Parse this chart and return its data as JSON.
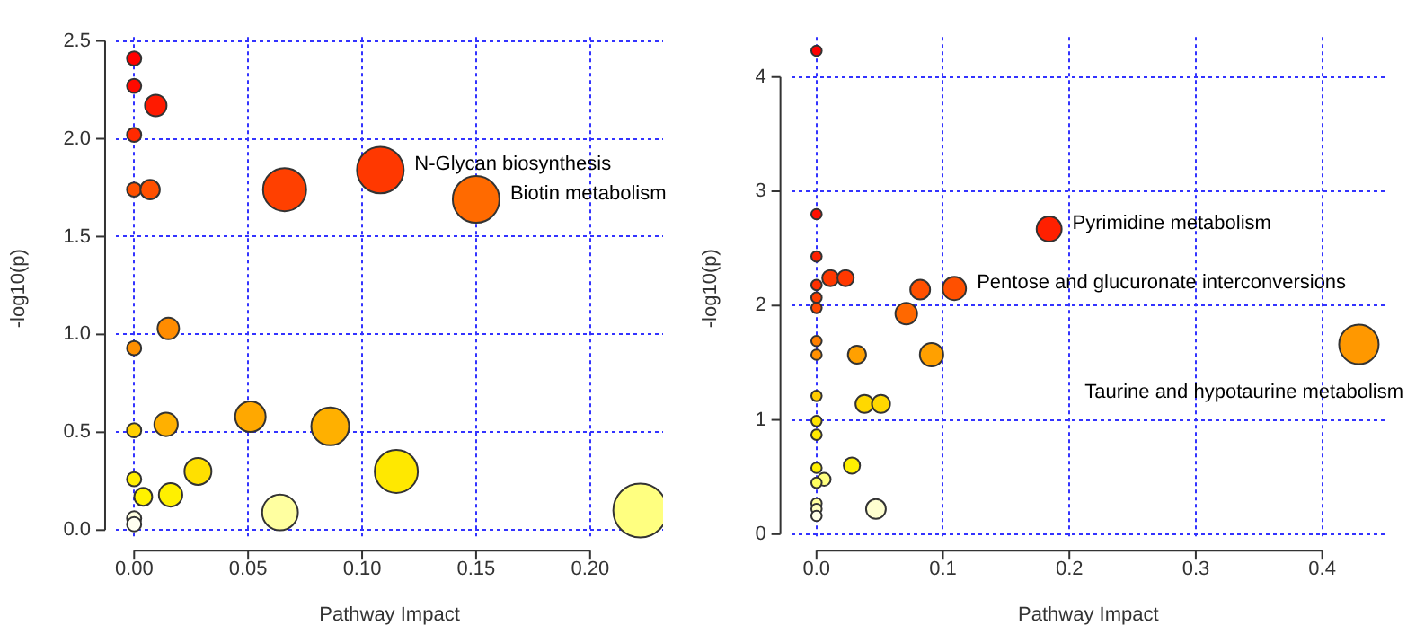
{
  "chart_data": [
    {
      "type": "bubble",
      "xlabel": "Pathway Impact",
      "ylabel": "-log10(p)",
      "grid": true,
      "marker": "circle",
      "xlim": [
        -0.008,
        0.232
      ],
      "ylim": [
        -0.05,
        2.52
      ],
      "xticks": [
        {
          "value": 0,
          "label": "0.00"
        },
        {
          "value": 0.05,
          "label": "0.05"
        },
        {
          "value": 0.1,
          "label": "0.10"
        },
        {
          "value": 0.15,
          "label": "0.15"
        },
        {
          "value": 0.2,
          "label": "0.20"
        }
      ],
      "yticks": [
        {
          "value": 0,
          "label": "0.0"
        },
        {
          "value": 0.5,
          "label": "0.5"
        },
        {
          "value": 1,
          "label": "1.0"
        },
        {
          "value": 1.5,
          "label": "1.5"
        },
        {
          "value": 2,
          "label": "2.0"
        },
        {
          "value": 2.5,
          "label": "2.5"
        }
      ],
      "x": [
        0,
        0,
        0.0095,
        0,
        0,
        0.007,
        0.066,
        0.108,
        0.15,
        0.015,
        0,
        0,
        0.014,
        0.051,
        0.086,
        0,
        0.004,
        0.016,
        0.028,
        0.115,
        0.064,
        0.222,
        0,
        0
      ],
      "values": [
        2.41,
        2.27,
        2.17,
        2.02,
        1.74,
        1.74,
        1.74,
        1.84,
        1.69,
        1.03,
        0.93,
        0.51,
        0.54,
        0.58,
        0.53,
        0.26,
        0.17,
        0.18,
        0.3,
        0.3,
        0.09,
        0.1,
        0.06,
        0.03
      ],
      "sizes": [
        0.07,
        0.07,
        0.16,
        0.07,
        0.07,
        0.13,
        0.64,
        0.75,
        0.75,
        0.16,
        0.07,
        0.07,
        0.19,
        0.32,
        0.49,
        0.07,
        0.11,
        0.19,
        0.25,
        0.64,
        0.44,
        1,
        0.07,
        0.07
      ],
      "colors": [
        "#ff0000",
        "#ff0a00",
        "#ff1a00",
        "#ff2a00",
        "#ff5000",
        "#ff5000",
        "#ff4000",
        "#ff3800",
        "#ff6a00",
        "#ff8c00",
        "#ff9000",
        "#ffd000",
        "#ffb000",
        "#ffa800",
        "#ffb000",
        "#ffee00",
        "#fff200",
        "#fff000",
        "#ffe000",
        "#ffe800",
        "#ffffa0",
        "#ffff80",
        "#ffffe0",
        "#fffff0"
      ],
      "annotations": [
        {
          "text": "N-Glycan biosynthesis",
          "x": 0.108,
          "y": 1.84
        },
        {
          "text": "Biotin metabolism",
          "x": 0.15,
          "y": 1.69
        }
      ]
    },
    {
      "type": "bubble",
      "xlabel": "Pathway Impact",
      "ylabel": "-log10(p)",
      "grid": true,
      "marker": "circle",
      "xlim": [
        -0.02,
        0.45
      ],
      "ylim": [
        -0.05,
        4.35
      ],
      "xticks": [
        {
          "value": 0,
          "label": "0.0"
        },
        {
          "value": 0.1,
          "label": "0.1"
        },
        {
          "value": 0.2,
          "label": "0.2"
        },
        {
          "value": 0.3,
          "label": "0.3"
        },
        {
          "value": 0.4,
          "label": "0.4"
        }
      ],
      "yticks": [
        0,
        1,
        2,
        3,
        4
      ],
      "x": [
        0,
        0,
        0,
        0,
        0,
        0,
        0.011,
        0.023,
        0.082,
        0.109,
        0.184,
        0.071,
        0,
        0,
        0.032,
        0.091,
        0,
        0.038,
        0.051,
        0,
        0,
        0,
        0.006,
        0,
        0.028,
        0,
        0,
        0,
        0.047,
        0.429
      ],
      "values": [
        4.23,
        2.8,
        2.43,
        2.18,
        2.07,
        1.98,
        2.24,
        2.24,
        2.14,
        2.15,
        2.67,
        1.93,
        1.69,
        1.57,
        1.57,
        1.57,
        1.21,
        1.14,
        1.14,
        0.99,
        0.87,
        0.58,
        0.48,
        0.45,
        0.6,
        0.27,
        0.22,
        0.16,
        0.22,
        1.66
      ],
      "sizes": [
        0.07,
        0.07,
        0.07,
        0.07,
        0.07,
        0.07,
        0.17,
        0.17,
        0.25,
        0.35,
        0.4,
        0.3,
        0.07,
        0.07,
        0.21,
        0.35,
        0.07,
        0.21,
        0.21,
        0.07,
        0.07,
        0.07,
        0.11,
        0.07,
        0.17,
        0.07,
        0.07,
        0.07,
        0.25,
        1
      ],
      "colors": [
        "#ff0000",
        "#ff1000",
        "#ff2000",
        "#ff3000",
        "#ff4000",
        "#ff4800",
        "#ff3800",
        "#ff3800",
        "#ff5000",
        "#ff5000",
        "#ff2000",
        "#ff6800",
        "#ff8000",
        "#ff9000",
        "#ffa000",
        "#ffa000",
        "#ffcc00",
        "#ffd800",
        "#ffd800",
        "#ffe400",
        "#ffea00",
        "#fff000",
        "#ffff80",
        "#ffff60",
        "#fff000",
        "#ffffa0",
        "#ffffc0",
        "#ffffe8",
        "#ffffd0",
        "#ff9800"
      ],
      "annotations": [
        {
          "text": "Pyrimidine metabolism",
          "x": 0.184,
          "y": 2.67
        },
        {
          "text": "Pentose and glucuronate interconversions",
          "x": 0.109,
          "y": 2.15
        },
        {
          "text": "Taurine and hypotaurine metabolism",
          "x": 0.429,
          "y": 1.66
        }
      ]
    }
  ]
}
